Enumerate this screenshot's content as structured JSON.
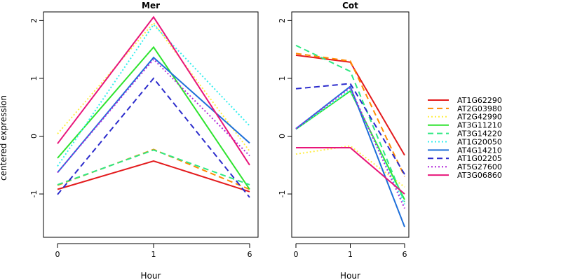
{
  "chart_data": {
    "type": "line",
    "ylabel": "centered expression",
    "xlabel": "Hour",
    "x": [
      "0",
      "1",
      "6"
    ],
    "ylim": [
      -1.75,
      2.15
    ],
    "yticks": [
      -1,
      0,
      1,
      2
    ],
    "legend_placement": "right",
    "styles": [
      {
        "color": "#e31a1c",
        "dash": "solid"
      },
      {
        "color": "#ff8c00",
        "dash": "longdash"
      },
      {
        "color": "#ffee44",
        "dash": "dotted"
      },
      {
        "color": "#2ee32e",
        "dash": "solid"
      },
      {
        "color": "#2ee882",
        "dash": "longdash"
      },
      {
        "color": "#33eeee",
        "dash": "dotted"
      },
      {
        "color": "#1e6fd9",
        "dash": "solid"
      },
      {
        "color": "#2b2bcc",
        "dash": "longdash"
      },
      {
        "color": "#b026d9",
        "dash": "dotted"
      },
      {
        "color": "#e8157a",
        "dash": "solid"
      }
    ],
    "panels": [
      {
        "title": "Mer",
        "series": [
          {
            "name": "AT1G62290",
            "values": [
              -0.92,
              -0.43,
              -0.96
            ]
          },
          {
            "name": "AT2G03980",
            "values": [
              -0.85,
              -0.23,
              -0.92
            ]
          },
          {
            "name": "AT2G42990",
            "values": [
              0.04,
              1.96,
              -0.26
            ]
          },
          {
            "name": "AT3G11210",
            "values": [
              -0.38,
              1.54,
              -0.92
            ]
          },
          {
            "name": "AT3G14220",
            "values": [
              -0.84,
              -0.24,
              -0.84
            ]
          },
          {
            "name": "AT1G20050",
            "values": [
              -0.52,
              1.93,
              0.18
            ]
          },
          {
            "name": "AT4G14210",
            "values": [
              -0.63,
              1.36,
              -0.12
            ]
          },
          {
            "name": "AT1G02205",
            "values": [
              -1.01,
              1.0,
              -1.06
            ]
          },
          {
            "name": "AT5G27600",
            "values": [
              -0.63,
              1.33,
              -0.34
            ]
          },
          {
            "name": "AT3G06860",
            "values": [
              -0.13,
              2.06,
              -0.5
            ]
          }
        ]
      },
      {
        "title": "Cot",
        "series": [
          {
            "name": "AT1G62290",
            "values": [
              1.4,
              1.28,
              -0.33
            ]
          },
          {
            "name": "AT2G03980",
            "values": [
              1.43,
              1.3,
              -0.7
            ]
          },
          {
            "name": "AT2G42990",
            "values": [
              -0.31,
              -0.17,
              -0.88
            ]
          },
          {
            "name": "AT3G11210",
            "values": [
              0.12,
              0.78,
              -1.1
            ]
          },
          {
            "name": "AT3G14220",
            "values": [
              1.57,
              1.12,
              -1.14
            ]
          },
          {
            "name": "AT1G20050",
            "values": [
              0.12,
              0.8,
              -1.18
            ]
          },
          {
            "name": "AT4G14210",
            "values": [
              0.13,
              0.86,
              -1.57
            ]
          },
          {
            "name": "AT1G02205",
            "values": [
              0.82,
              0.91,
              -0.66
            ]
          },
          {
            "name": "AT5G27600",
            "values": [
              0.13,
              0.84,
              -1.25
            ]
          },
          {
            "name": "AT3G06860",
            "values": [
              -0.2,
              -0.2,
              -1.0
            ]
          }
        ]
      }
    ]
  }
}
